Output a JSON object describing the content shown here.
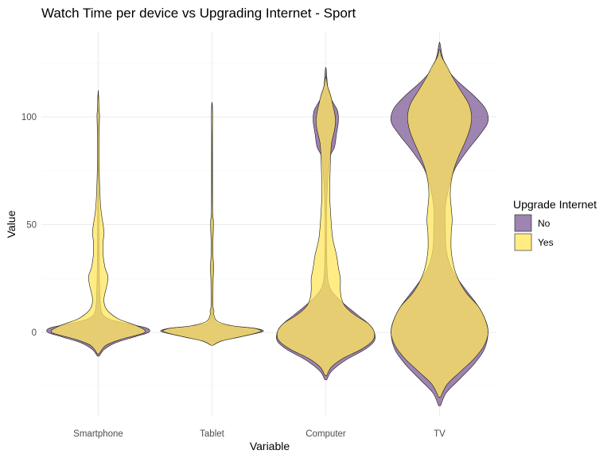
{
  "chart_data": {
    "type": "violin",
    "title": "Watch Time per device vs Upgrading Internet - Sport",
    "xlabel": "Variable",
    "ylabel": "Value",
    "categories": [
      "Smartphone",
      "Tablet",
      "Computer",
      "TV"
    ],
    "yticks": [
      0,
      50,
      100
    ],
    "ylim": [
      -35,
      140
    ],
    "grid": true,
    "legend": {
      "title": "Upgrade Internet",
      "position": "right",
      "entries": [
        {
          "label": "No",
          "color": "#7e5b96"
        },
        {
          "label": "Yes",
          "color": "#ffe55c"
        }
      ]
    },
    "series": [
      {
        "name": "No",
        "color": "#7e5b96",
        "opacity": 0.75,
        "violins": [
          {
            "category": "Smartphone",
            "profile": [
              [
                -11,
                0.01
              ],
              [
                -8,
                0.06
              ],
              [
                -5,
                0.17
              ],
              [
                -2,
                0.38
              ],
              [
                0,
                0.52
              ],
              [
                2,
                0.5
              ],
              [
                4,
                0.3
              ],
              [
                6,
                0.12
              ],
              [
                8,
                0.05
              ],
              [
                10,
                0.03
              ],
              [
                14,
                0.02
              ],
              [
                20,
                0.015
              ],
              [
                30,
                0.01
              ],
              [
                45,
                0.008
              ],
              [
                60,
                0.005
              ],
              [
                80,
                0.004
              ],
              [
                100,
                0.006
              ],
              [
                111,
                0.002
              ]
            ]
          },
          {
            "category": "Tablet",
            "profile": [
              [
                -6,
                0.01
              ],
              [
                -4,
                0.1
              ],
              [
                -2,
                0.3
              ],
              [
                0,
                0.5
              ],
              [
                1,
                0.52
              ],
              [
                2,
                0.42
              ],
              [
                3,
                0.2
              ],
              [
                4,
                0.06
              ],
              [
                6,
                0.02
              ],
              [
                10,
                0.01
              ],
              [
                30,
                0.008
              ],
              [
                60,
                0.006
              ],
              [
                100,
                0.004
              ],
              [
                106,
                0.002
              ]
            ]
          },
          {
            "category": "Computer",
            "profile": [
              [
                -22,
                0.01
              ],
              [
                -18,
                0.06
              ],
              [
                -13,
                0.2
              ],
              [
                -8,
                0.4
              ],
              [
                -4,
                0.5
              ],
              [
                0,
                0.5
              ],
              [
                4,
                0.44
              ],
              [
                8,
                0.33
              ],
              [
                12,
                0.22
              ],
              [
                16,
                0.12
              ],
              [
                20,
                0.05
              ],
              [
                25,
                0.02
              ],
              [
                35,
                0.01
              ],
              [
                60,
                0.01
              ],
              [
                80,
                0.04
              ],
              [
                86,
                0.09
              ],
              [
                92,
                0.11
              ],
              [
                98,
                0.13
              ],
              [
                103,
                0.12
              ],
              [
                108,
                0.06
              ],
              [
                114,
                0.02
              ],
              [
                122,
                0.005
              ]
            ]
          },
          {
            "category": "TV",
            "profile": [
              [
                -34,
                0.01
              ],
              [
                -28,
                0.07
              ],
              [
                -22,
                0.2
              ],
              [
                -15,
                0.35
              ],
              [
                -8,
                0.46
              ],
              [
                0,
                0.5
              ],
              [
                6,
                0.47
              ],
              [
                12,
                0.4
              ],
              [
                18,
                0.3
              ],
              [
                24,
                0.2
              ],
              [
                30,
                0.12
              ],
              [
                38,
                0.07
              ],
              [
                48,
                0.06
              ],
              [
                58,
                0.06
              ],
              [
                68,
                0.1
              ],
              [
                76,
                0.16
              ],
              [
                84,
                0.28
              ],
              [
                92,
                0.42
              ],
              [
                98,
                0.5
              ],
              [
                104,
                0.47
              ],
              [
                110,
                0.35
              ],
              [
                116,
                0.2
              ],
              [
                122,
                0.08
              ],
              [
                128,
                0.03
              ],
              [
                134,
                0.005
              ]
            ]
          }
        ]
      },
      {
        "name": "Yes",
        "color": "#ffe55c",
        "opacity": 0.75,
        "violins": [
          {
            "category": "Smartphone",
            "profile": [
              [
                -10,
                0.01
              ],
              [
                -6,
                0.08
              ],
              [
                -3,
                0.25
              ],
              [
                0,
                0.48
              ],
              [
                3,
                0.4
              ],
              [
                6,
                0.22
              ],
              [
                9,
                0.12
              ],
              [
                12,
                0.07
              ],
              [
                16,
                0.06
              ],
              [
                22,
                0.09
              ],
              [
                26,
                0.1
              ],
              [
                30,
                0.07
              ],
              [
                36,
                0.05
              ],
              [
                42,
                0.05
              ],
              [
                46,
                0.06
              ],
              [
                50,
                0.05
              ],
              [
                56,
                0.03
              ],
              [
                62,
                0.02
              ],
              [
                75,
                0.01
              ],
              [
                90,
                0.008
              ],
              [
                98,
                0.012
              ],
              [
                101,
                0.013
              ],
              [
                104,
                0.008
              ],
              [
                110,
                0.003
              ]
            ]
          },
          {
            "category": "Tablet",
            "profile": [
              [
                -6,
                0.01
              ],
              [
                -4,
                0.1
              ],
              [
                -2,
                0.3
              ],
              [
                0,
                0.48
              ],
              [
                1,
                0.5
              ],
              [
                2,
                0.42
              ],
              [
                3,
                0.22
              ],
              [
                5,
                0.06
              ],
              [
                8,
                0.02
              ],
              [
                10,
                0.02
              ],
              [
                12,
                0.01
              ],
              [
                18,
                0.01
              ],
              [
                25,
                0.012
              ],
              [
                30,
                0.018
              ],
              [
                34,
                0.012
              ],
              [
                40,
                0.008
              ],
              [
                48,
                0.014
              ],
              [
                52,
                0.014
              ],
              [
                56,
                0.006
              ],
              [
                70,
                0.004
              ],
              [
                90,
                0.004
              ],
              [
                100,
                0.006
              ],
              [
                106,
                0.002
              ]
            ]
          },
          {
            "category": "Computer",
            "profile": [
              [
                -20,
                0.01
              ],
              [
                -16,
                0.06
              ],
              [
                -12,
                0.18
              ],
              [
                -8,
                0.36
              ],
              [
                -4,
                0.48
              ],
              [
                0,
                0.5
              ],
              [
                4,
                0.44
              ],
              [
                8,
                0.3
              ],
              [
                12,
                0.2
              ],
              [
                16,
                0.16
              ],
              [
                20,
                0.15
              ],
              [
                25,
                0.15
              ],
              [
                30,
                0.13
              ],
              [
                36,
                0.11
              ],
              [
                44,
                0.07
              ],
              [
                55,
                0.05
              ],
              [
                65,
                0.04
              ],
              [
                75,
                0.045
              ],
              [
                82,
                0.05
              ],
              [
                88,
                0.06
              ],
              [
                94,
                0.09
              ],
              [
                98,
                0.1
              ],
              [
                102,
                0.09
              ],
              [
                106,
                0.07
              ],
              [
                110,
                0.05
              ],
              [
                114,
                0.02
              ],
              [
                118,
                0.005
              ]
            ]
          },
          {
            "category": "TV",
            "profile": [
              [
                -30,
                0.01
              ],
              [
                -24,
                0.08
              ],
              [
                -18,
                0.22
              ],
              [
                -12,
                0.36
              ],
              [
                -6,
                0.46
              ],
              [
                0,
                0.5
              ],
              [
                6,
                0.47
              ],
              [
                12,
                0.4
              ],
              [
                18,
                0.28
              ],
              [
                24,
                0.2
              ],
              [
                30,
                0.15
              ],
              [
                38,
                0.12
              ],
              [
                46,
                0.12
              ],
              [
                52,
                0.13
              ],
              [
                58,
                0.12
              ],
              [
                64,
                0.11
              ],
              [
                70,
                0.12
              ],
              [
                76,
                0.15
              ],
              [
                82,
                0.2
              ],
              [
                88,
                0.26
              ],
              [
                94,
                0.31
              ],
              [
                100,
                0.33
              ],
              [
                106,
                0.3
              ],
              [
                112,
                0.22
              ],
              [
                118,
                0.14
              ],
              [
                124,
                0.07
              ],
              [
                128,
                0.02
              ],
              [
                131,
                0.005
              ]
            ]
          }
        ]
      }
    ]
  }
}
